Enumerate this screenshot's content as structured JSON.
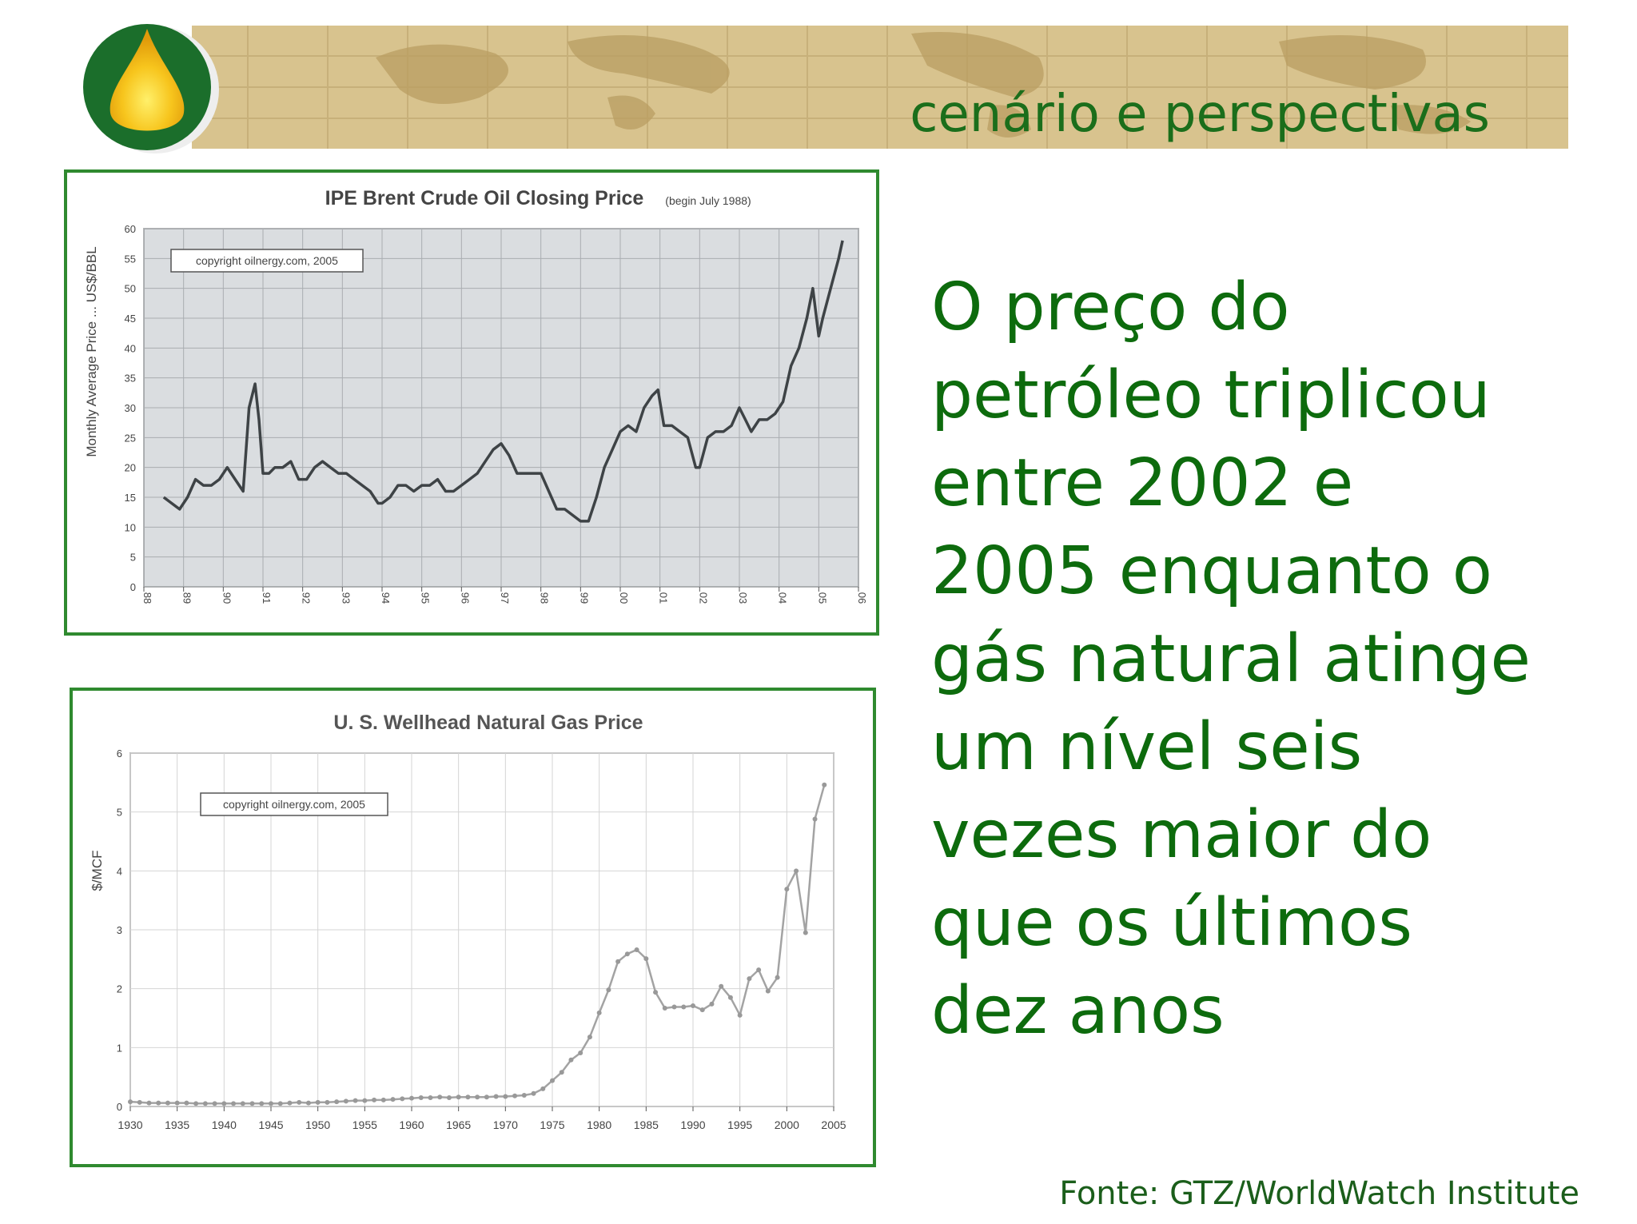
{
  "header": {
    "subtitle": "cenário e perspectivas"
  },
  "colors": {
    "green": "#0d6b0d",
    "banner": "#d8c38e",
    "frame": "#2f8a2f",
    "logo_ring": "#1b6e2b",
    "logo_drop": "#f5c21b"
  },
  "main_text": "O preço do petróleo triplicou entre 2002  e 2005 enquanto o gás natural atinge um nível seis vezes maior do que os últimos dez anos",
  "source": "Fonte: GTZ/WorldWatch Institute",
  "chart_data": [
    {
      "type": "line",
      "title": "IPE Brent Crude Oil Closing Price",
      "subtitle": "(begin July 1988)",
      "ylabel": "Monthly Average Price ... US$/BBL",
      "annotation": "copyright oilnergy.com, 2005",
      "ylim": [
        0,
        60
      ],
      "yticks": [
        0,
        5,
        10,
        15,
        20,
        25,
        30,
        35,
        40,
        45,
        50,
        55,
        60
      ],
      "xlim": [
        1988,
        2006
      ],
      "xtick_labels": [
        "88",
        "89",
        "90",
        "91",
        "92",
        "93",
        "94",
        "95",
        "96",
        "97",
        "98",
        "99",
        "00",
        "01",
        "02",
        "03",
        "04",
        "05",
        "06"
      ],
      "grid": true,
      "series": [
        {
          "x": [
            1988.5,
            1988.7,
            1988.9,
            1989.1,
            1989.3,
            1989.5,
            1989.7,
            1989.9,
            1990.1,
            1990.3,
            1990.5,
            1990.65,
            1990.8,
            1990.9,
            1991.0,
            1991.15,
            1991.3,
            1991.5,
            1991.7,
            1991.9,
            1992.1,
            1992.3,
            1992.5,
            1992.7,
            1992.9,
            1993.1,
            1993.3,
            1993.5,
            1993.7,
            1993.9,
            1994.0,
            1994.2,
            1994.4,
            1994.6,
            1994.8,
            1995.0,
            1995.2,
            1995.4,
            1995.6,
            1995.8,
            1996.0,
            1996.2,
            1996.4,
            1996.6,
            1996.8,
            1997.0,
            1997.2,
            1997.4,
            1997.6,
            1997.8,
            1998.0,
            1998.2,
            1998.4,
            1998.6,
            1998.8,
            1999.0,
            1999.2,
            1999.4,
            1999.6,
            1999.8,
            2000.0,
            2000.2,
            2000.4,
            2000.6,
            2000.8,
            2000.95,
            2001.1,
            2001.3,
            2001.5,
            2001.7,
            2001.9,
            2002.0,
            2002.2,
            2002.4,
            2002.6,
            2002.8,
            2003.0,
            2003.15,
            2003.3,
            2003.5,
            2003.7,
            2003.9,
            2004.1,
            2004.3,
            2004.5,
            2004.7,
            2004.85,
            2005.0,
            2005.1,
            2005.3,
            2005.5,
            2005.6
          ],
          "y": [
            15,
            14,
            13,
            15,
            18,
            17,
            17,
            18,
            20,
            18,
            16,
            30,
            34,
            28,
            19,
            19,
            20,
            20,
            21,
            18,
            18,
            20,
            21,
            20,
            19,
            19,
            18,
            17,
            16,
            14,
            14,
            15,
            17,
            17,
            16,
            17,
            17,
            18,
            16,
            16,
            17,
            18,
            19,
            21,
            23,
            24,
            22,
            19,
            19,
            19,
            19,
            16,
            13,
            13,
            12,
            11,
            11,
            15,
            20,
            23,
            26,
            27,
            26,
            30,
            32,
            33,
            27,
            27,
            26,
            25,
            20,
            20,
            25,
            26,
            26,
            27,
            30,
            28,
            26,
            28,
            28,
            29,
            31,
            37,
            40,
            45,
            50,
            42,
            45,
            50,
            55,
            58
          ]
        }
      ]
    },
    {
      "type": "line",
      "title": "U. S. Wellhead Natural Gas Price",
      "ylabel": "$/MCF",
      "annotation": "copyright oilnergy.com, 2005",
      "ylim": [
        0,
        6
      ],
      "yticks": [
        0,
        1,
        2,
        3,
        4,
        5,
        6
      ],
      "xlim": [
        1930,
        2005
      ],
      "xtick_labels": [
        "1930",
        "1935",
        "1940",
        "1945",
        "1950",
        "1955",
        "1960",
        "1965",
        "1970",
        "1975",
        "1980",
        "1985",
        "1990",
        "1995",
        "2000",
        "2005"
      ],
      "grid": true,
      "series": [
        {
          "x": [
            1930,
            1931,
            1932,
            1933,
            1934,
            1935,
            1936,
            1937,
            1938,
            1939,
            1940,
            1941,
            1942,
            1943,
            1944,
            1945,
            1946,
            1947,
            1948,
            1949,
            1950,
            1951,
            1952,
            1953,
            1954,
            1955,
            1956,
            1957,
            1958,
            1959,
            1960,
            1961,
            1962,
            1963,
            1964,
            1965,
            1966,
            1967,
            1968,
            1969,
            1970,
            1971,
            1972,
            1973,
            1974,
            1975,
            1976,
            1977,
            1978,
            1979,
            1980,
            1981,
            1982,
            1983,
            1984,
            1985,
            1986,
            1987,
            1988,
            1989,
            1990,
            1991,
            1992,
            1993,
            1994,
            1995,
            1996,
            1997,
            1998,
            1999,
            2000,
            2001,
            2002,
            2003,
            2004
          ],
          "y": [
            0.08,
            0.07,
            0.06,
            0.06,
            0.06,
            0.06,
            0.06,
            0.05,
            0.05,
            0.05,
            0.05,
            0.05,
            0.05,
            0.05,
            0.05,
            0.05,
            0.05,
            0.06,
            0.07,
            0.06,
            0.07,
            0.07,
            0.08,
            0.09,
            0.1,
            0.1,
            0.11,
            0.11,
            0.12,
            0.13,
            0.14,
            0.15,
            0.15,
            0.16,
            0.15,
            0.16,
            0.16,
            0.16,
            0.16,
            0.17,
            0.17,
            0.18,
            0.19,
            0.22,
            0.3,
            0.44,
            0.58,
            0.79,
            0.91,
            1.18,
            1.59,
            1.98,
            2.46,
            2.59,
            2.66,
            2.51,
            1.94,
            1.67,
            1.69,
            1.69,
            1.71,
            1.64,
            1.74,
            2.04,
            1.85,
            1.55,
            2.17,
            2.32,
            1.96,
            2.19,
            3.69,
            4.0,
            2.95,
            4.88,
            5.46
          ]
        }
      ]
    }
  ]
}
